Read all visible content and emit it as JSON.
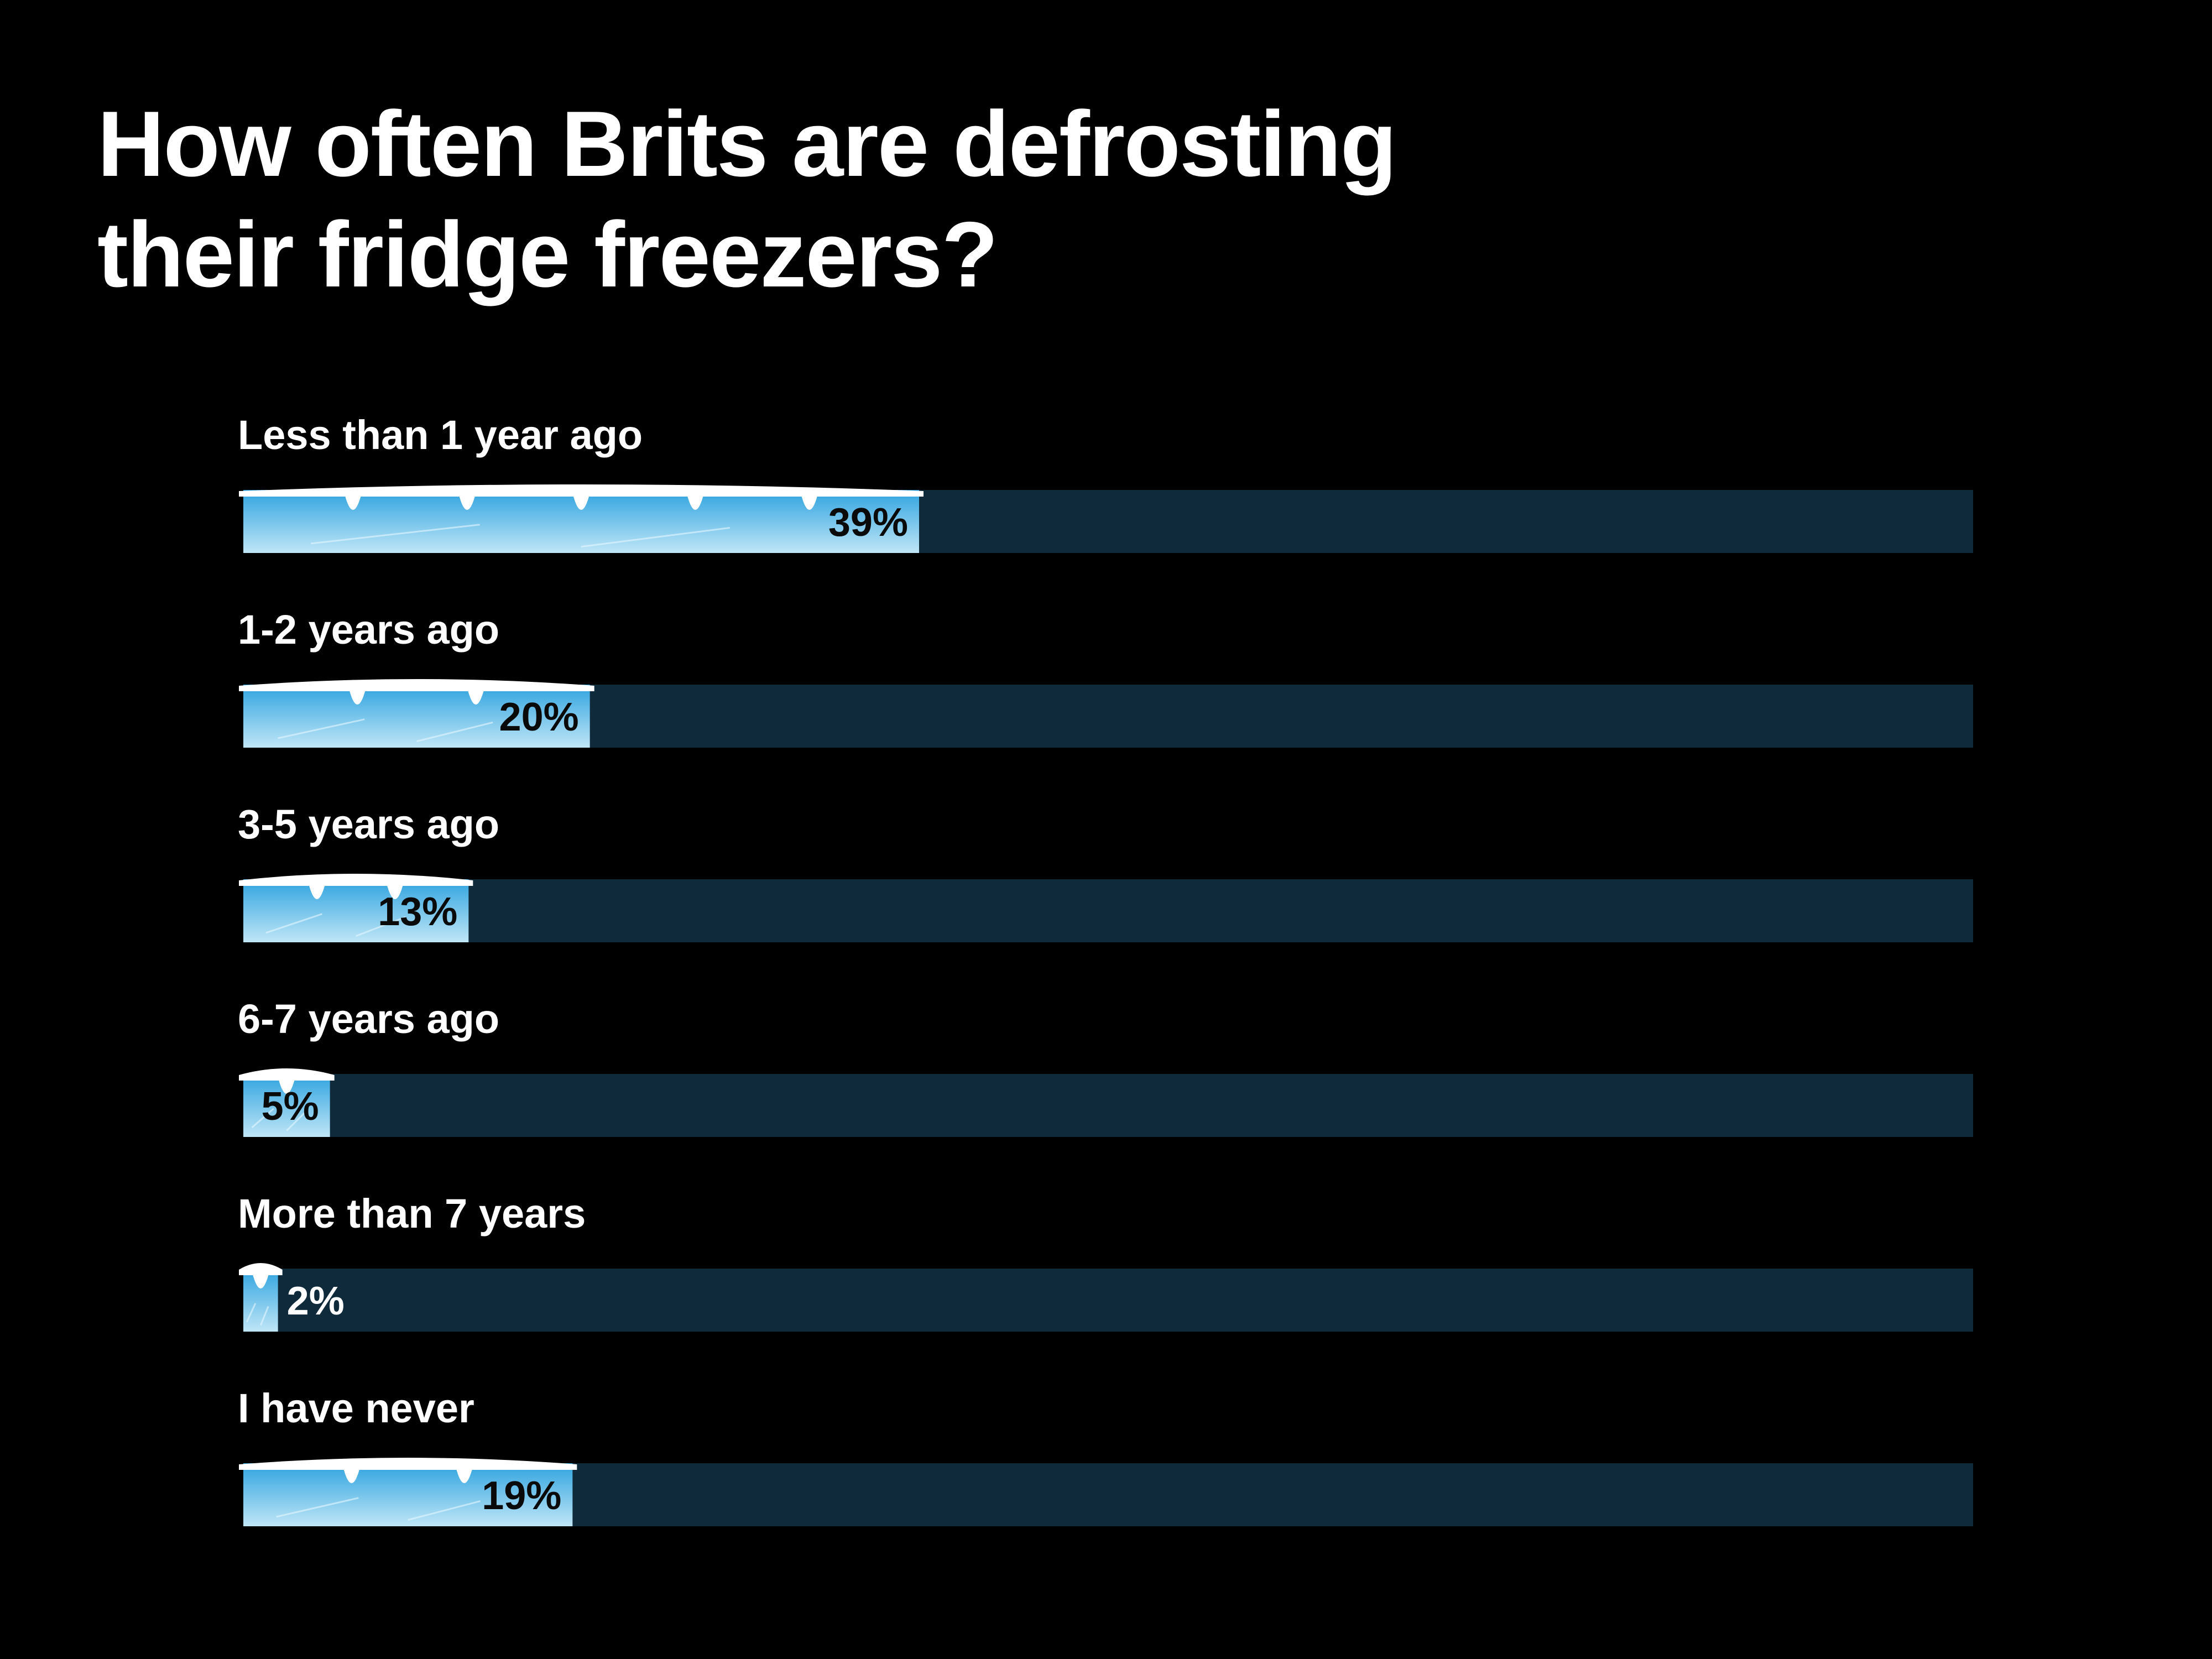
{
  "chart_data": {
    "type": "bar",
    "orientation": "horizontal",
    "title": "How often Brits are defrosting their fridge freezers?",
    "categories": [
      "Less than 1 year ago",
      "1-2 years ago",
      "3-5 years ago",
      "6-7 years ago",
      "More than 7 years",
      "I have never"
    ],
    "values": [
      39,
      20,
      13,
      5,
      2,
      19
    ],
    "value_labels": [
      "39%",
      "20%",
      "13%",
      "5%",
      "2%",
      "19%"
    ],
    "xlim": [
      0,
      100
    ],
    "unit": "%",
    "grid": false,
    "legend": "none"
  },
  "colors": {
    "background": "#000000",
    "track": "#0f2a3a",
    "ice_light": "#bfe6f7",
    "ice_dark": "#2fa3df",
    "snow": "#ffffff",
    "title": "#ffffff",
    "label_inside": "#0a0a0a",
    "label_outside": "#ffffff"
  }
}
